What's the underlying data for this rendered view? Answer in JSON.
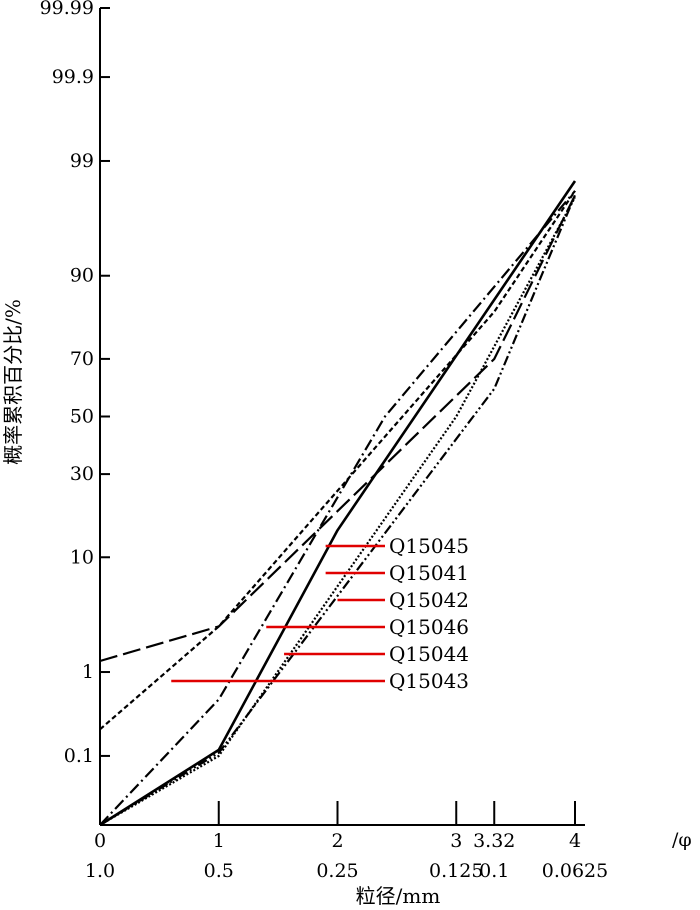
{
  "chart_data": {
    "type": "line",
    "title": "",
    "xlabel": "粒径/mm",
    "ylabel": "概率累积百分比/%",
    "x_unit": "/φ",
    "x_scale": "phi (linear)",
    "y_scale": "probability (normal)",
    "xlim": [
      0,
      4
    ],
    "ylim": [
      0.01,
      99.99
    ],
    "x_ticks_phi": [
      "0",
      "1",
      "2",
      "3",
      "3.32",
      "4"
    ],
    "x_ticks_phi_values": [
      0,
      1,
      2,
      3,
      3.32,
      4
    ],
    "x_ticks_mm": [
      "1.0",
      "0.5",
      "0.25",
      "0.125",
      "0.1",
      "0.0625"
    ],
    "y_ticks": [
      "0.1",
      "1",
      "10",
      "30",
      "50",
      "70",
      "90",
      "99",
      "99.9",
      "99.99"
    ],
    "y_ticks_values": [
      0.1,
      1,
      10,
      30,
      50,
      70,
      90,
      99,
      99.9,
      99.99
    ],
    "grid": false,
    "legend_placement": "center (labels with red leader lines)",
    "legend_color": "#e00000",
    "series": [
      {
        "name": "Q15045",
        "dash": "solid",
        "x": [
          0,
          1,
          2,
          4
        ],
        "y": [
          0.01,
          0.12,
          15,
          98.4
        ]
      },
      {
        "name": "Q15041",
        "dash": "dashdot",
        "x": [
          0,
          1,
          2.4,
          4
        ],
        "y": [
          0.01,
          0.5,
          50,
          98
        ]
      },
      {
        "name": "Q15042",
        "dash": "longdash",
        "x": [
          0,
          1,
          3.32,
          4
        ],
        "y": [
          1.3,
          2.8,
          70,
          97.8
        ]
      },
      {
        "name": "Q15046",
        "dash": "shortdash",
        "x": [
          0,
          1,
          3.32,
          4
        ],
        "y": [
          0.22,
          2.8,
          83,
          98
        ]
      },
      {
        "name": "Q15044",
        "dash": "dashdotdot",
        "x": [
          0,
          1,
          3.32,
          4
        ],
        "y": [
          0.01,
          0.11,
          60,
          97.8
        ]
      },
      {
        "name": "Q15043",
        "dash": "dotted",
        "x": [
          0,
          1,
          3,
          4
        ],
        "y": [
          0.01,
          0.1,
          50,
          97.7
        ]
      }
    ],
    "legend": [
      {
        "name": "Q15045",
        "x_start": 1.9
      },
      {
        "name": "Q15041",
        "x_start": 1.9
      },
      {
        "name": "Q15042",
        "x_start": 2.0
      },
      {
        "name": "Q15046",
        "x_start": 1.4
      },
      {
        "name": "Q15044",
        "x_start": 1.55
      },
      {
        "name": "Q15043",
        "x_start": 0.6
      }
    ]
  }
}
